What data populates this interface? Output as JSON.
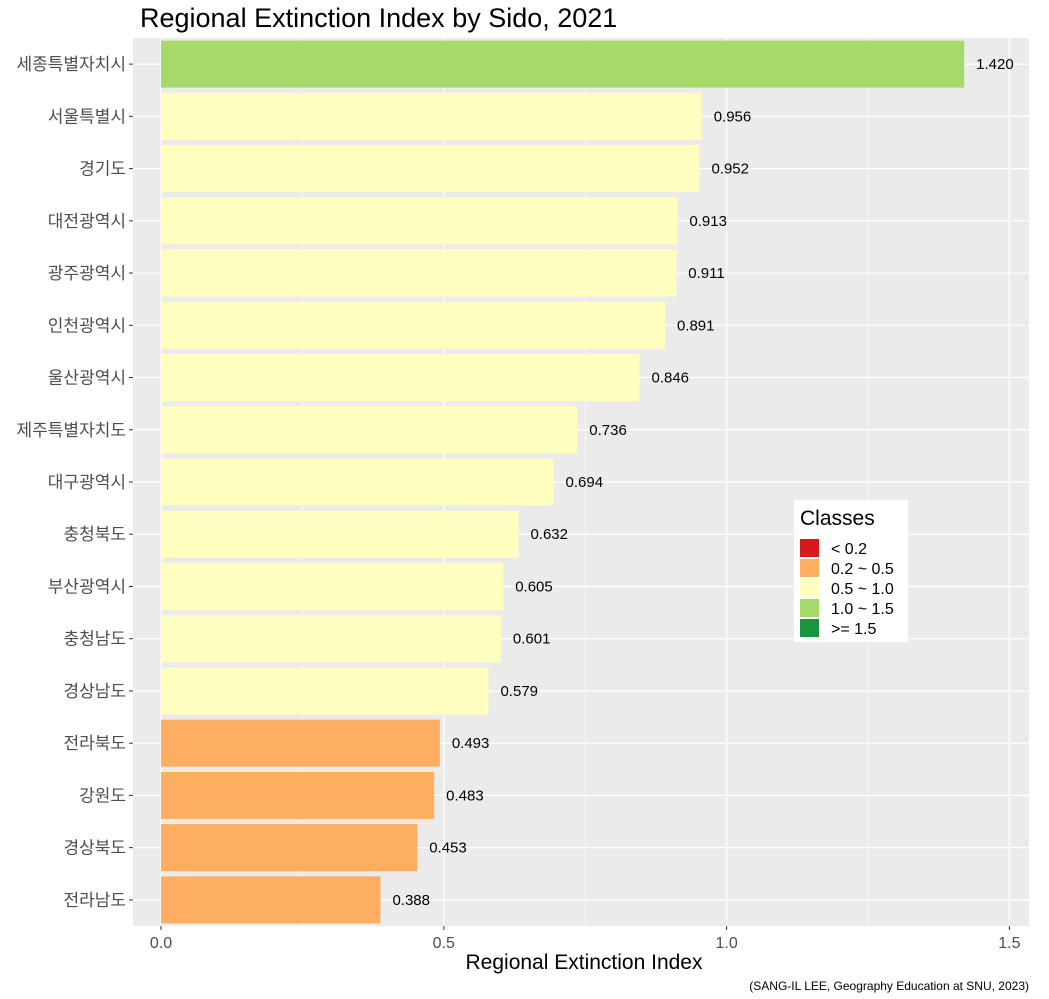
{
  "chart_data": {
    "type": "bar",
    "orientation": "horizontal",
    "title": "Regional Extinction Index by Sido, 2021",
    "xlabel": "Regional Extinction Index",
    "ylabel": "",
    "caption": "(SANG-IL LEE, Geography Education at SNU, 2023)",
    "xlim": [
      0,
      1.52
    ],
    "x_ticks": [
      0,
      0.5,
      1.0,
      1.5
    ],
    "x_tick_labels": [
      "0.0",
      "0.5",
      "1.0",
      "1.5"
    ],
    "grid": true,
    "legend_position": "right",
    "categories": [
      "세종특별자치시",
      "서울특별시",
      "경기도",
      "대전광역시",
      "광주광역시",
      "인천광역시",
      "울산광역시",
      "제주특별자치도",
      "대구광역시",
      "충청북도",
      "부산광역시",
      "충청남도",
      "경상남도",
      "전라북도",
      "강원도",
      "경상북도",
      "전라남도"
    ],
    "values": [
      1.42,
      0.956,
      0.952,
      0.913,
      0.911,
      0.891,
      0.846,
      0.736,
      0.694,
      0.632,
      0.605,
      0.601,
      0.579,
      0.493,
      0.483,
      0.453,
      0.388
    ],
    "value_labels": [
      "1.420",
      "0.956",
      "0.952",
      "0.913",
      "0.911",
      "0.891",
      "0.846",
      "0.736",
      "0.694",
      "0.632",
      "0.605",
      "0.601",
      "0.579",
      "0.493",
      "0.483",
      "0.453",
      "0.388"
    ],
    "bar_classes": [
      3,
      2,
      2,
      2,
      2,
      2,
      2,
      2,
      2,
      2,
      2,
      2,
      2,
      1,
      1,
      1,
      1
    ],
    "legend": {
      "title": "Classes",
      "items": [
        {
          "label": "< 0.2",
          "color": "#d7191c"
        },
        {
          "label": "0.2 ~ 0.5",
          "color": "#fdae61"
        },
        {
          "label": "0.5 ~ 1.0",
          "color": "#ffffbf"
        },
        {
          "label": "1.0 ~ 1.5",
          "color": "#a6d96a"
        },
        {
          "label": ">= 1.5",
          "color": "#1a9641"
        }
      ]
    },
    "colors": {
      "panel_background": "#ebebeb",
      "grid": "#ffffff",
      "tick_text": "#4d4d4d"
    }
  }
}
